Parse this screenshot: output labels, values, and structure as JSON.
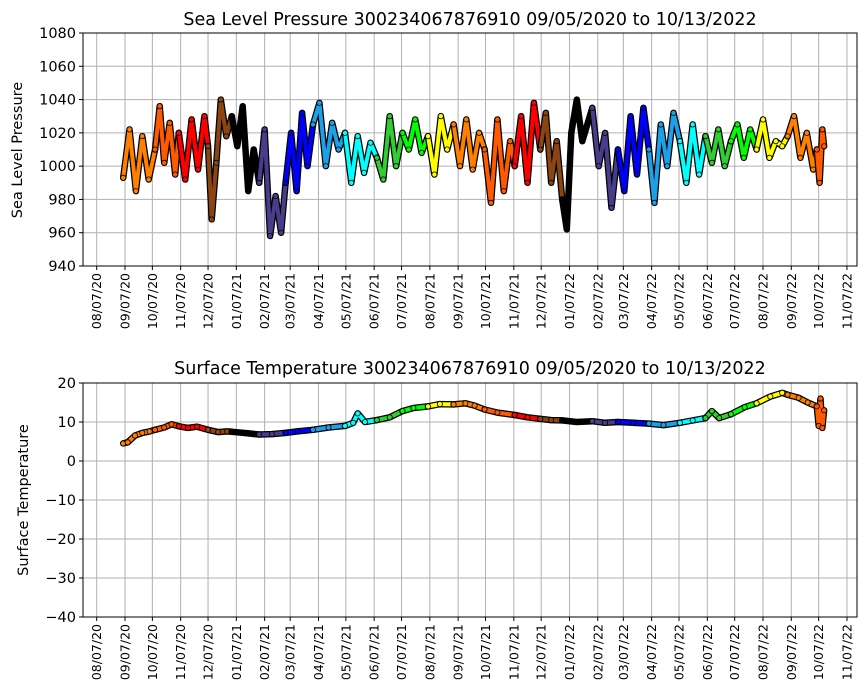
{
  "chart_data": [
    {
      "type": "line",
      "title": "Sea Level Pressure 300234067876910  09/05/2020 to 10/13/2022",
      "xlabel": "",
      "ylabel": "Sea Level Pressure",
      "ylim": [
        940,
        1080
      ],
      "yticks": [
        940,
        960,
        980,
        1000,
        1020,
        1040,
        1060,
        1080
      ],
      "xlim": [
        "2020-07-23",
        "2022-11-18"
      ],
      "xticks": [
        "2020-08-07",
        "2020-09-07",
        "2020-10-07",
        "2020-11-07",
        "2020-12-07",
        "2021-01-07",
        "2021-02-07",
        "2021-03-07",
        "2021-04-07",
        "2021-05-07",
        "2021-06-07",
        "2021-07-07",
        "2021-08-07",
        "2021-09-07",
        "2021-10-07",
        "2021-11-07",
        "2021-12-07",
        "2022-01-07",
        "2022-02-07",
        "2022-03-07",
        "2022-04-07",
        "2022-05-07",
        "2022-06-07",
        "2022-07-07",
        "2022-08-07",
        "2022-09-07",
        "2022-10-07",
        "2022-11-07"
      ],
      "xtick_labels": [
        "08/07/20",
        "09/07/20",
        "10/07/20",
        "11/07/20",
        "12/07/20",
        "01/07/21",
        "02/07/21",
        "03/07/21",
        "04/07/21",
        "05/07/21",
        "06/07/21",
        "07/07/21",
        "08/07/21",
        "09/07/21",
        "10/07/21",
        "11/07/21",
        "12/07/21",
        "01/07/22",
        "02/07/22",
        "03/07/22",
        "04/07/22",
        "05/07/22",
        "06/07/22",
        "07/07/22",
        "08/07/22",
        "09/07/22",
        "10/07/22",
        "11/07/22"
      ],
      "grid": true,
      "series": [
        {
          "color": "#ff8000",
          "x": [
            "2020-09-05",
            "2020-09-12",
            "2020-09-19",
            "2020-09-26",
            "2020-10-03",
            "2020-10-10"
          ],
          "y": [
            993,
            1022,
            985,
            1018,
            992,
            1010
          ]
        },
        {
          "color": "#ff5a00",
          "x": [
            "2020-10-10",
            "2020-10-15",
            "2020-10-20",
            "2020-10-26",
            "2020-11-01",
            "2020-11-05"
          ],
          "y": [
            1010,
            1036,
            1002,
            1026,
            995,
            1020
          ]
        },
        {
          "color": "#ff0000",
          "x": [
            "2020-11-05",
            "2020-11-12",
            "2020-11-19",
            "2020-11-26",
            "2020-12-03",
            "2020-12-07"
          ],
          "y": [
            1020,
            992,
            1028,
            998,
            1030,
            1012
          ]
        },
        {
          "color": "#8b4513",
          "x": [
            "2020-12-07",
            "2020-12-11",
            "2020-12-16",
            "2020-12-21",
            "2020-12-27",
            "2021-01-02"
          ],
          "y": [
            1012,
            968,
            1002,
            1040,
            1018,
            1030
          ]
        },
        {
          "color": "#000000",
          "x": [
            "2021-01-02",
            "2021-01-08",
            "2021-01-14",
            "2021-01-20",
            "2021-01-26",
            "2021-02-01"
          ],
          "y": [
            1030,
            1012,
            1036,
            985,
            1010,
            990
          ]
        },
        {
          "color": "#483d8b",
          "x": [
            "2021-02-01",
            "2021-02-07",
            "2021-02-13",
            "2021-02-19",
            "2021-02-25",
            "2021-03-02"
          ],
          "y": [
            990,
            1022,
            958,
            982,
            960,
            990
          ]
        },
        {
          "color": "#0000ff",
          "x": [
            "2021-03-02",
            "2021-03-08",
            "2021-03-14",
            "2021-03-20",
            "2021-03-26",
            "2021-04-01"
          ],
          "y": [
            990,
            1020,
            985,
            1032,
            1000,
            1025
          ]
        },
        {
          "color": "#1ea0e6",
          "x": [
            "2021-04-01",
            "2021-04-08",
            "2021-04-15",
            "2021-04-22",
            "2021-04-29",
            "2021-05-06"
          ],
          "y": [
            1025,
            1038,
            1000,
            1026,
            1010,
            1020
          ]
        },
        {
          "color": "#00ffff",
          "x": [
            "2021-05-06",
            "2021-05-13",
            "2021-05-20",
            "2021-05-27",
            "2021-06-03",
            "2021-06-10"
          ],
          "y": [
            1020,
            990,
            1018,
            996,
            1014,
            1005
          ]
        },
        {
          "color": "#32cd32",
          "x": [
            "2021-06-10",
            "2021-06-17",
            "2021-06-24",
            "2021-07-01",
            "2021-07-08"
          ],
          "y": [
            1005,
            992,
            1030,
            1000,
            1020
          ]
        },
        {
          "color": "#00ff00",
          "x": [
            "2021-07-08",
            "2021-07-15",
            "2021-07-22",
            "2021-07-29",
            "2021-08-05"
          ],
          "y": [
            1020,
            1010,
            1028,
            1008,
            1018
          ]
        },
        {
          "color": "#ffff00",
          "x": [
            "2021-08-05",
            "2021-08-12",
            "2021-08-19",
            "2021-08-26",
            "2021-09-02"
          ],
          "y": [
            1018,
            995,
            1030,
            1010,
            1025
          ]
        },
        {
          "color": "#ff8000",
          "x": [
            "2021-09-02",
            "2021-09-09",
            "2021-09-16",
            "2021-09-23",
            "2021-09-30",
            "2021-10-06"
          ],
          "y": [
            1025,
            1000,
            1028,
            998,
            1020,
            1010
          ]
        },
        {
          "color": "#ff5a00",
          "x": [
            "2021-10-06",
            "2021-10-13",
            "2021-10-20",
            "2021-10-27",
            "2021-11-03",
            "2021-11-08"
          ],
          "y": [
            1010,
            978,
            1028,
            985,
            1015,
            1000
          ]
        },
        {
          "color": "#ff0000",
          "x": [
            "2021-11-08",
            "2021-11-15",
            "2021-11-22",
            "2021-11-29",
            "2021-12-06"
          ],
          "y": [
            1000,
            1030,
            990,
            1038,
            1010
          ]
        },
        {
          "color": "#8b4513",
          "x": [
            "2021-12-06",
            "2021-12-12",
            "2021-12-18",
            "2021-12-24",
            "2021-12-30"
          ],
          "y": [
            1010,
            1032,
            990,
            1015,
            980
          ]
        },
        {
          "color": "#000000",
          "x": [
            "2021-12-30",
            "2022-01-04",
            "2022-01-09",
            "2022-01-15",
            "2022-01-21",
            "2022-02-01"
          ],
          "y": [
            980,
            962,
            1020,
            1040,
            1015,
            1035
          ]
        },
        {
          "color": "#483d8b",
          "x": [
            "2022-02-01",
            "2022-02-08",
            "2022-02-15",
            "2022-02-22",
            "2022-03-01"
          ],
          "y": [
            1035,
            1000,
            1020,
            975,
            1010
          ]
        },
        {
          "color": "#0000ff",
          "x": [
            "2022-03-01",
            "2022-03-08",
            "2022-03-15",
            "2022-03-22",
            "2022-03-29",
            "2022-04-04"
          ],
          "y": [
            1010,
            985,
            1030,
            995,
            1035,
            1010
          ]
        },
        {
          "color": "#1ea0e6",
          "x": [
            "2022-04-04",
            "2022-04-10",
            "2022-04-17",
            "2022-04-24",
            "2022-05-01",
            "2022-05-08"
          ],
          "y": [
            1010,
            978,
            1025,
            1000,
            1032,
            1015
          ]
        },
        {
          "color": "#00ffff",
          "x": [
            "2022-05-08",
            "2022-05-15",
            "2022-05-22",
            "2022-05-29",
            "2022-06-05"
          ],
          "y": [
            1015,
            990,
            1025,
            995,
            1018
          ]
        },
        {
          "color": "#32cd32",
          "x": [
            "2022-06-05",
            "2022-06-12",
            "2022-06-19",
            "2022-06-26",
            "2022-07-03"
          ],
          "y": [
            1018,
            1002,
            1022,
            1000,
            1015
          ]
        },
        {
          "color": "#00ff00",
          "x": [
            "2022-07-03",
            "2022-07-10",
            "2022-07-17",
            "2022-07-24",
            "2022-07-31"
          ],
          "y": [
            1015,
            1025,
            1005,
            1022,
            1010
          ]
        },
        {
          "color": "#ffff00",
          "x": [
            "2022-07-31",
            "2022-08-07",
            "2022-08-14",
            "2022-08-21",
            "2022-08-28",
            "2022-09-03"
          ],
          "y": [
            1010,
            1028,
            1005,
            1015,
            1012,
            1018
          ]
        },
        {
          "color": "#ff8000",
          "x": [
            "2022-09-03",
            "2022-09-10",
            "2022-09-17",
            "2022-09-24",
            "2022-10-01",
            "2022-10-05"
          ],
          "y": [
            1018,
            1030,
            1005,
            1020,
            998,
            1010
          ]
        },
        {
          "color": "#ff5a00",
          "x": [
            "2022-10-05",
            "2022-10-08",
            "2022-10-11",
            "2022-10-13"
          ],
          "y": [
            1010,
            990,
            1022,
            1012
          ]
        }
      ]
    },
    {
      "type": "line",
      "title": "Surface Temperature 300234067876910  09/05/2020 to 10/13/2022",
      "xlabel": "",
      "ylabel": "Surface Temperature",
      "ylim": [
        -40,
        20
      ],
      "yticks": [
        -40,
        -30,
        -20,
        -10,
        0,
        10,
        20
      ],
      "ytick_labels": [
        "−40",
        "−30",
        "−20",
        "−10",
        "0",
        "10",
        "20"
      ],
      "xlim": [
        "2020-07-23",
        "2022-11-18"
      ],
      "xticks": [
        "2020-08-07",
        "2020-09-07",
        "2020-10-07",
        "2020-11-07",
        "2020-12-07",
        "2021-01-07",
        "2021-02-07",
        "2021-03-07",
        "2021-04-07",
        "2021-05-07",
        "2021-06-07",
        "2021-07-07",
        "2021-08-07",
        "2021-09-07",
        "2021-10-07",
        "2021-11-07",
        "2021-12-07",
        "2022-01-07",
        "2022-02-07",
        "2022-03-07",
        "2022-04-07",
        "2022-05-07",
        "2022-06-07",
        "2022-07-07",
        "2022-08-07",
        "2022-09-07",
        "2022-10-07",
        "2022-11-07"
      ],
      "xtick_labels": [
        "08/07/20",
        "09/07/20",
        "10/07/20",
        "11/07/20",
        "12/07/20",
        "01/07/21",
        "02/07/21",
        "03/07/21",
        "04/07/21",
        "05/07/21",
        "06/07/21",
        "07/07/21",
        "08/07/21",
        "09/07/21",
        "10/07/21",
        "11/07/21",
        "12/07/21",
        "01/07/22",
        "02/07/22",
        "03/07/22",
        "04/07/22",
        "05/07/22",
        "06/07/22",
        "07/07/22",
        "08/07/22",
        "09/07/22",
        "10/07/22",
        "11/07/22"
      ],
      "grid": true,
      "series": [
        {
          "color": "#ff8000",
          "x": [
            "2020-09-05",
            "2020-09-10",
            "2020-09-18",
            "2020-09-26",
            "2020-10-04",
            "2020-10-10"
          ],
          "y": [
            4.5,
            4.8,
            6.5,
            7.2,
            7.6,
            8.0
          ]
        },
        {
          "color": "#ff5a00",
          "x": [
            "2020-10-10",
            "2020-10-20",
            "2020-10-28",
            "2020-11-05"
          ],
          "y": [
            8.0,
            8.6,
            9.4,
            8.9
          ]
        },
        {
          "color": "#ff0000",
          "x": [
            "2020-11-05",
            "2020-11-15",
            "2020-11-25",
            "2020-12-07"
          ],
          "y": [
            8.9,
            8.5,
            8.8,
            8.0
          ]
        },
        {
          "color": "#8b4513",
          "x": [
            "2020-12-07",
            "2020-12-18",
            "2020-12-28",
            "2021-01-02"
          ],
          "y": [
            8.0,
            7.4,
            7.6,
            7.5
          ]
        },
        {
          "color": "#000000",
          "x": [
            "2021-01-02",
            "2021-01-15",
            "2021-02-01"
          ],
          "y": [
            7.5,
            7.2,
            6.8
          ]
        },
        {
          "color": "#483d8b",
          "x": [
            "2021-02-01",
            "2021-02-15",
            "2021-03-02"
          ],
          "y": [
            6.8,
            6.9,
            7.2
          ]
        },
        {
          "color": "#0000ff",
          "x": [
            "2021-03-02",
            "2021-03-15",
            "2021-04-01"
          ],
          "y": [
            7.2,
            7.6,
            8.0
          ]
        },
        {
          "color": "#1ea0e6",
          "x": [
            "2021-04-01",
            "2021-04-18",
            "2021-05-06"
          ],
          "y": [
            8.0,
            8.6,
            9.0
          ]
        },
        {
          "color": "#00ffff",
          "x": [
            "2021-05-06",
            "2021-05-15",
            "2021-05-20",
            "2021-05-28",
            "2021-06-10"
          ],
          "y": [
            9.0,
            9.8,
            12.2,
            10.0,
            10.5
          ]
        },
        {
          "color": "#32cd32",
          "x": [
            "2021-06-10",
            "2021-06-24",
            "2021-07-08"
          ],
          "y": [
            10.5,
            11.2,
            12.8
          ]
        },
        {
          "color": "#00ff00",
          "x": [
            "2021-07-08",
            "2021-07-20",
            "2021-08-05"
          ],
          "y": [
            12.8,
            13.6,
            14.0
          ]
        },
        {
          "color": "#ffff00",
          "x": [
            "2021-08-05",
            "2021-08-18",
            "2021-09-02"
          ],
          "y": [
            14.0,
            14.6,
            14.5
          ]
        },
        {
          "color": "#ff8000",
          "x": [
            "2021-09-02",
            "2021-09-15",
            "2021-09-25",
            "2021-10-06"
          ],
          "y": [
            14.5,
            14.8,
            14.2,
            13.2
          ]
        },
        {
          "color": "#ff5a00",
          "x": [
            "2021-10-06",
            "2021-10-20",
            "2021-11-08"
          ],
          "y": [
            13.2,
            12.4,
            11.8
          ]
        },
        {
          "color": "#ff0000",
          "x": [
            "2021-11-08",
            "2021-11-22",
            "2021-12-06"
          ],
          "y": [
            11.8,
            11.2,
            10.8
          ]
        },
        {
          "color": "#8b4513",
          "x": [
            "2021-12-06",
            "2021-12-18",
            "2021-12-30"
          ],
          "y": [
            10.8,
            10.5,
            10.4
          ]
        },
        {
          "color": "#000000",
          "x": [
            "2021-12-30",
            "2022-01-15",
            "2022-02-01"
          ],
          "y": [
            10.4,
            10.0,
            10.2
          ]
        },
        {
          "color": "#483d8b",
          "x": [
            "2022-02-01",
            "2022-02-15",
            "2022-03-01"
          ],
          "y": [
            10.2,
            9.8,
            10.0
          ]
        },
        {
          "color": "#0000ff",
          "x": [
            "2022-03-01",
            "2022-03-18",
            "2022-04-04"
          ],
          "y": [
            10.0,
            9.8,
            9.6
          ]
        },
        {
          "color": "#1ea0e6",
          "x": [
            "2022-04-04",
            "2022-04-20",
            "2022-05-08"
          ],
          "y": [
            9.6,
            9.2,
            9.8
          ]
        },
        {
          "color": "#00ffff",
          "x": [
            "2022-05-08",
            "2022-05-22",
            "2022-06-05"
          ],
          "y": [
            9.8,
            10.4,
            11.0
          ]
        },
        {
          "color": "#32cd32",
          "x": [
            "2022-06-05",
            "2022-06-12",
            "2022-06-20",
            "2022-07-03"
          ],
          "y": [
            11.0,
            12.8,
            11.0,
            12.0
          ]
        },
        {
          "color": "#00ff00",
          "x": [
            "2022-07-03",
            "2022-07-18",
            "2022-07-31"
          ],
          "y": [
            12.0,
            13.8,
            14.8
          ]
        },
        {
          "color": "#ffff00",
          "x": [
            "2022-07-31",
            "2022-08-15",
            "2022-08-28",
            "2022-09-03"
          ],
          "y": [
            14.8,
            16.5,
            17.5,
            17.0
          ]
        },
        {
          "color": "#ff8000",
          "x": [
            "2022-09-03",
            "2022-09-15",
            "2022-09-25",
            "2022-10-05"
          ],
          "y": [
            17.0,
            16.2,
            15.0,
            14.0
          ]
        },
        {
          "color": "#ff5a00",
          "x": [
            "2022-10-05",
            "2022-10-07",
            "2022-10-09",
            "2022-10-11",
            "2022-10-13"
          ],
          "y": [
            14.0,
            9.0,
            16.0,
            8.5,
            13.0
          ]
        }
      ]
    }
  ]
}
